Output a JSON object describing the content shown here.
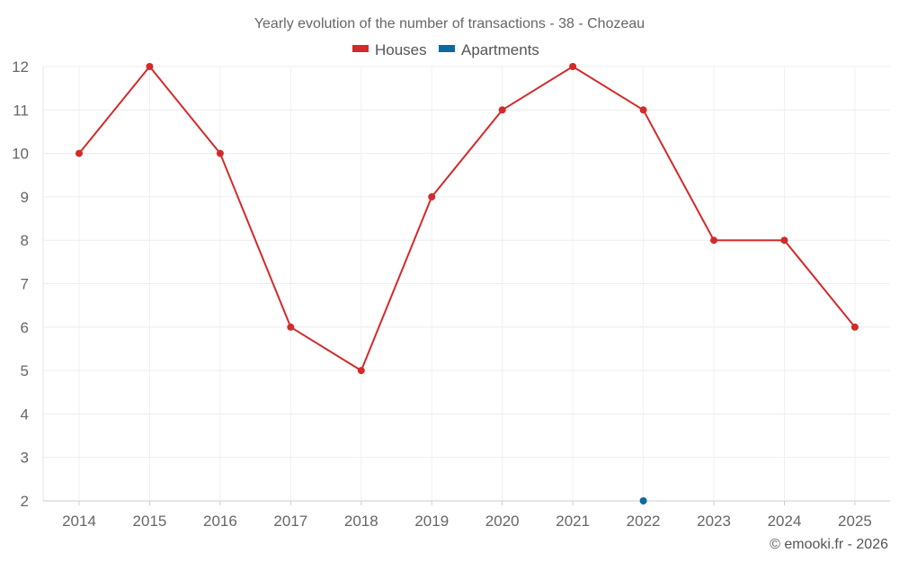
{
  "chart_data": {
    "type": "line",
    "title": "Yearly evolution of the number of transactions - 38 - Chozeau",
    "categories": [
      "2014",
      "2015",
      "2016",
      "2017",
      "2018",
      "2019",
      "2020",
      "2021",
      "2022",
      "2023",
      "2024",
      "2025"
    ],
    "series": [
      {
        "name": "Houses",
        "color": "#d32a2a",
        "values": [
          10,
          12,
          10,
          6,
          5,
          9,
          11,
          12,
          11,
          8,
          8,
          6
        ]
      },
      {
        "name": "Apartments",
        "color": "#0b6aa2",
        "values": [
          null,
          null,
          null,
          null,
          null,
          null,
          null,
          null,
          2,
          null,
          null,
          null
        ]
      }
    ],
    "ylim": [
      2,
      12
    ],
    "yticks": [
      2,
      3,
      4,
      5,
      6,
      7,
      8,
      9,
      10,
      11,
      12
    ],
    "grid": true,
    "legend": "top-center",
    "credit": "© emooki.fr - 2026"
  }
}
